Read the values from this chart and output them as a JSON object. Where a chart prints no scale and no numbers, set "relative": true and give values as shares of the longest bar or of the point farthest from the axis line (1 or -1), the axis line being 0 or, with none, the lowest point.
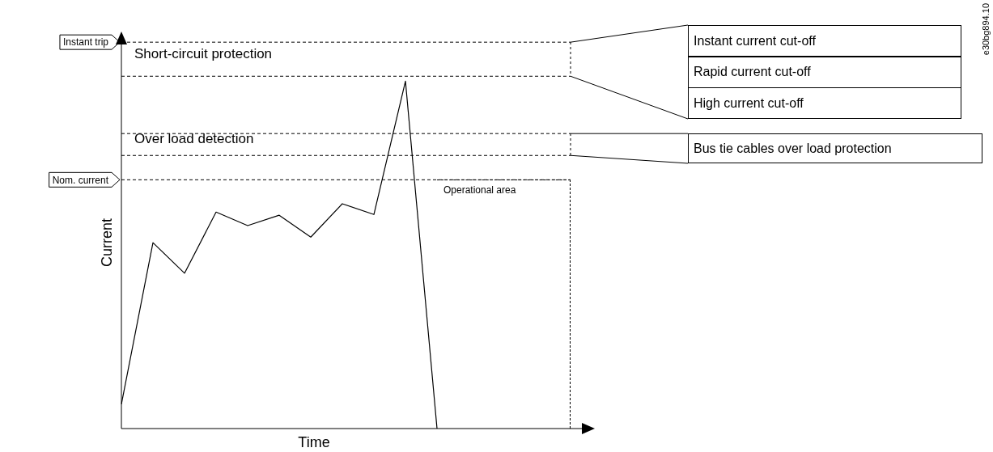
{
  "chart_data": {
    "type": "line",
    "relative": true,
    "xlabel": "Time",
    "ylabel": "Current",
    "categories": [
      null,
      null,
      null,
      null,
      null,
      null,
      null,
      null,
      null,
      null,
      null,
      null,
      null,
      null,
      null,
      null
    ],
    "series": [
      {
        "color": "#000000",
        "values": [
          0.07,
          0.535,
          0.447,
          0.623,
          0.584,
          0.614,
          0.551,
          0.647,
          0.616,
          1,
          0,
          null,
          null,
          null,
          null,
          null
        ]
      }
    ],
    "ref_lines": [
      {
        "axis": "y",
        "value": 1.112,
        "label": "Instant trip",
        "line_style": "dashed"
      },
      {
        "axis": "y",
        "value": 1.014,
        "line_style": "dashed"
      },
      {
        "axis": "y",
        "value": 0.849,
        "line_style": "dashed"
      },
      {
        "axis": "y",
        "value": 0.786,
        "line_style": "dashed"
      },
      {
        "axis": "y",
        "value": 0.716,
        "label": "Nom. current",
        "line_style": "dashed"
      }
    ],
    "annotations": [
      "Operational area",
      "Instant current cut-off",
      "Rapid current cut-off",
      "High current cut-off",
      "Bus tie cables over load protection",
      "e30bg894.10",
      "Short-circuit protection",
      "Over load detection"
    ],
    "legend": false,
    "marker": "none",
    "line_style": "solid"
  }
}
